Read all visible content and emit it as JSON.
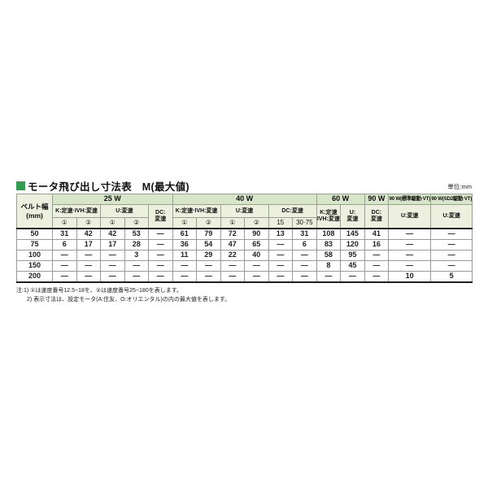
{
  "header": {
    "title": "モータ飛び出し寸法表　M(最大値)",
    "unit_label": "単位:mm"
  },
  "table": {
    "belt_header": "ベルト幅\n(mm)",
    "groups": [
      {
        "label": "25 W"
      },
      {
        "label": "40 W"
      },
      {
        "label": "60 W"
      },
      {
        "label": "90 W"
      },
      {
        "label": "90 W(標準駆動·VT)"
      },
      {
        "label": "90 W(SD2駆動·VT)"
      }
    ],
    "sub": {
      "k_ivh": "K:定速·IVH:変速",
      "u": "U:変速",
      "dc": "DC:変速",
      "dc_two_line": "DC:\n変速",
      "k_ivh_two_line": "K:定速\nIVH:変速",
      "u_two_line": "U:\n変速",
      "c1": "①",
      "c2": "②",
      "dc15": "15",
      "dc30_75": "30·75"
    },
    "rows": [
      {
        "belt": "50",
        "cells": [
          "31",
          "42",
          "42",
          "53",
          "—",
          "61",
          "79",
          "72",
          "90",
          "13",
          "31",
          "108",
          "145",
          "41",
          "—",
          "—"
        ]
      },
      {
        "belt": "75",
        "cells": [
          "6",
          "17",
          "17",
          "28",
          "—",
          "36",
          "54",
          "47",
          "65",
          "—",
          "6",
          "83",
          "120",
          "16",
          "—",
          "—"
        ]
      },
      {
        "belt": "100",
        "cells": [
          "—",
          "—",
          "—",
          "3",
          "—",
          "11",
          "29",
          "22",
          "40",
          "—",
          "—",
          "58",
          "95",
          "—",
          "—",
          "—"
        ]
      },
      {
        "belt": "150",
        "cells": [
          "—",
          "—",
          "—",
          "—",
          "—",
          "—",
          "—",
          "—",
          "—",
          "—",
          "—",
          "8",
          "45",
          "—",
          "—",
          "—"
        ]
      },
      {
        "belt": "200",
        "cells": [
          "—",
          "—",
          "—",
          "—",
          "—",
          "—",
          "—",
          "—",
          "—",
          "—",
          "—",
          "—",
          "—",
          "—",
          "10",
          "5"
        ]
      }
    ]
  },
  "notes": {
    "line1": "注:1) ①は速度番号12.5~18を、②は速度番号25~180を表します。",
    "line2": "2) 表示寸法は、設定モータ(A:住友、O:オリエンタル)の内の最大値を表します。"
  },
  "colors": {
    "accent_green": "#2f9e4e",
    "group_header_bg": "#d7e5c9",
    "sub_header_bg": "#edefdf"
  }
}
